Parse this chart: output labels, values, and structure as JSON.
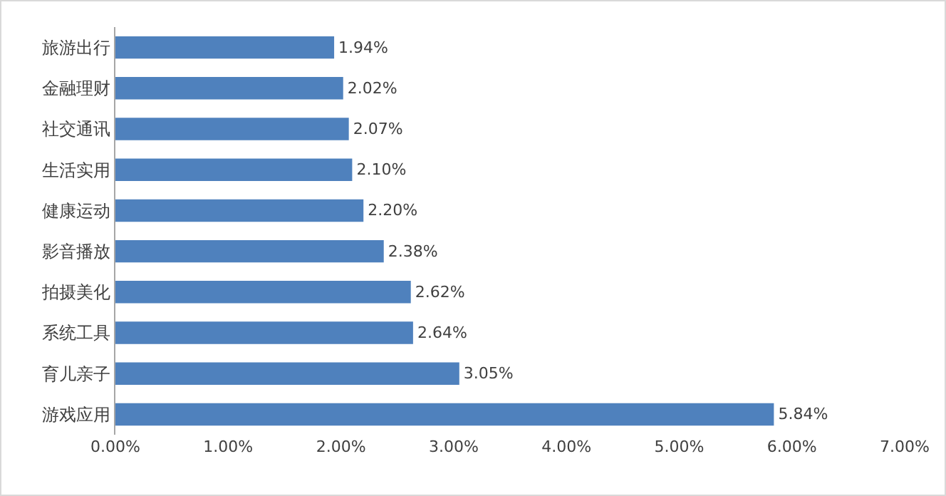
{
  "chart_data": {
    "type": "bar",
    "orientation": "horizontal",
    "categories": [
      "旅游出行",
      "金融理财",
      "社交通讯",
      "生活实用",
      "健康运动",
      "影音播放",
      "拍摄美化",
      "系统工具",
      "育儿亲子",
      "游戏应用"
    ],
    "values": [
      1.94,
      2.02,
      2.07,
      2.1,
      2.2,
      2.38,
      2.62,
      2.64,
      3.05,
      5.84
    ],
    "value_labels": [
      "1.94%",
      "2.02%",
      "2.07%",
      "2.10%",
      "2.20%",
      "2.38%",
      "2.62%",
      "2.64%",
      "3.05%",
      "5.84%"
    ],
    "color": "#4f81bd",
    "xlim": [
      0,
      7
    ],
    "xticks": [
      {
        "value": 0,
        "label": "0.00%"
      },
      {
        "value": 1,
        "label": "1.00%"
      },
      {
        "value": 2,
        "label": "2.00%"
      },
      {
        "value": 3,
        "label": "3.00%"
      },
      {
        "value": 4,
        "label": "4.00%"
      },
      {
        "value": 5,
        "label": "5.00%"
      },
      {
        "value": 6,
        "label": "6.00%"
      },
      {
        "value": 7,
        "label": "7.00%"
      }
    ]
  }
}
